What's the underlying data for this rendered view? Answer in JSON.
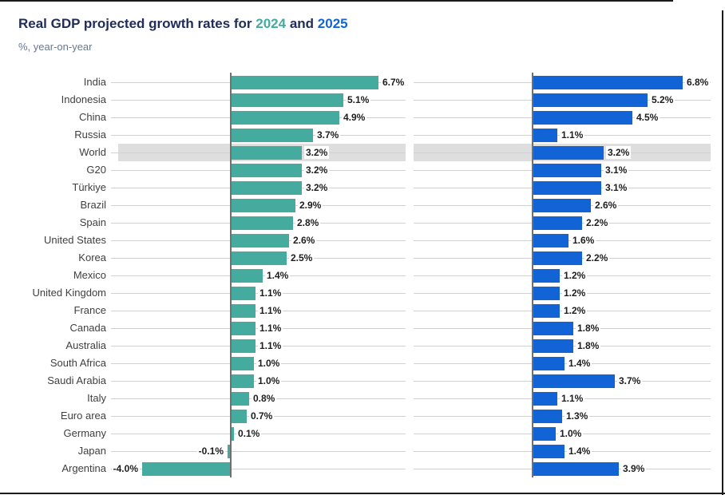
{
  "title": {
    "prefix": "Real GDP projected growth rates for",
    "year_2024": "2024",
    "connector": "and",
    "year_2025": "2025"
  },
  "subtitle": "%, year-on-year",
  "colors": {
    "series_2024": "#45ab9f",
    "series_2025": "#1264d6",
    "highlight_band": "#dedede",
    "title_navy": "#202d5a",
    "subtitle_gray": "#6a788e",
    "axis_line": "#707070",
    "leader_line": "#ccd3e0",
    "category_label": "#3f3f3f",
    "value_label": "#1d1d1d",
    "frame_border": "#1a1a1a"
  },
  "chart_data": {
    "type": "bar",
    "orientation": "horizontal",
    "title": "Real GDP projected growth rates for 2024 and 2025",
    "unit_label": "%, year-on-year",
    "value_suffix": "%",
    "value_decimals": 1,
    "legend_position": "in-title",
    "grid": "row-leader-lines",
    "xlim_per_panel": [
      -4.5,
      8.0
    ],
    "highlighted_category": "World",
    "categories": [
      "India",
      "Indonesia",
      "China",
      "Russia",
      "World",
      "G20",
      "Türkiye",
      "Brazil",
      "Spain",
      "United States",
      "Korea",
      "Mexico",
      "United Kingdom",
      "France",
      "Canada",
      "Australia",
      "South Africa",
      "Saudi Arabia",
      "Italy",
      "Euro area",
      "Germany",
      "Japan",
      "Argentina"
    ],
    "series": [
      {
        "name": "2024",
        "color": "#45ab9f",
        "values": [
          6.7,
          5.1,
          4.9,
          3.7,
          3.2,
          3.2,
          3.2,
          2.9,
          2.8,
          2.6,
          2.5,
          1.4,
          1.1,
          1.1,
          1.1,
          1.1,
          1.0,
          1.0,
          0.8,
          0.7,
          0.1,
          -0.1,
          -4.0
        ]
      },
      {
        "name": "2025",
        "color": "#1264d6",
        "values": [
          6.8,
          5.2,
          4.5,
          1.1,
          3.2,
          3.1,
          3.1,
          2.6,
          2.2,
          1.6,
          2.2,
          1.2,
          1.2,
          1.2,
          1.8,
          1.8,
          1.4,
          3.7,
          1.1,
          1.3,
          1.0,
          1.4,
          3.9
        ]
      }
    ]
  }
}
